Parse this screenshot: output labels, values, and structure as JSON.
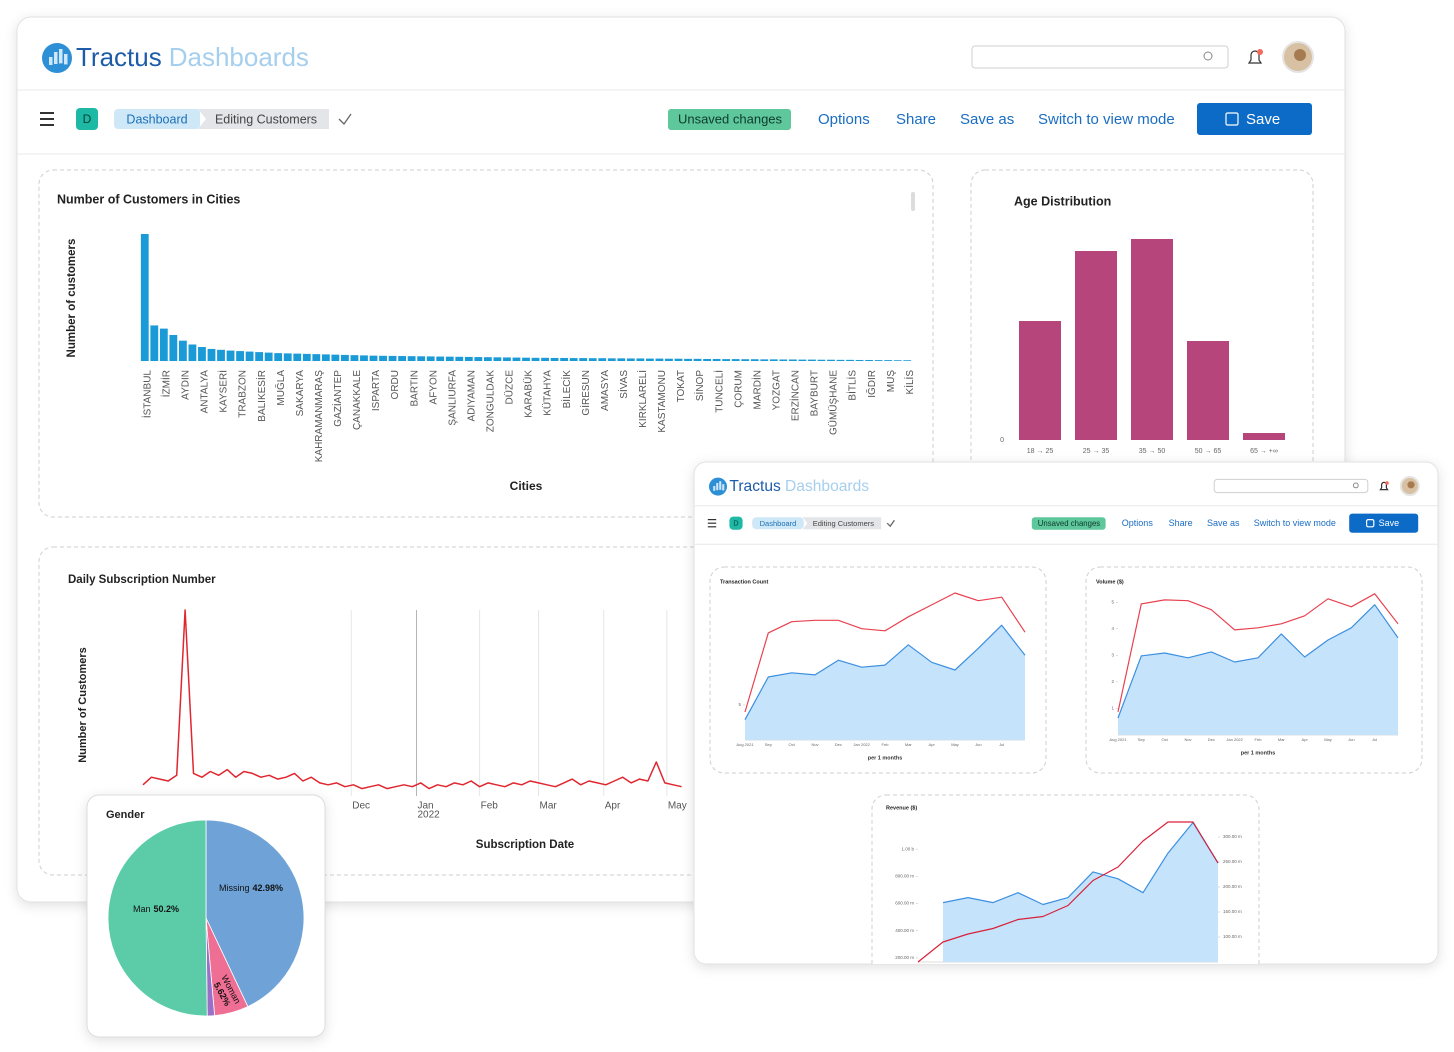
{
  "header": {
    "brand": "Tractus",
    "product": "Dashboards"
  },
  "toolbar": {
    "badge": "D",
    "breadcrumb": [
      "Dashboard",
      "Editing Customers"
    ],
    "status": "Unsaved changes",
    "actions": [
      "Options",
      "Share",
      "Save as",
      "Switch to view mode"
    ],
    "save": "Save"
  },
  "chart_data": [
    {
      "type": "bar",
      "title": "Number of Customers in Cities",
      "x_label": "Cities",
      "y_label": "Number of customers",
      "color": "#1a9ad6",
      "ylim": [
        0,
        1000
      ],
      "categories": [
        "İSTANBUL",
        null,
        "İZMİR",
        null,
        "AYDIN",
        null,
        "ANTALYA",
        null,
        "KAYSERİ",
        null,
        "TRABZON",
        null,
        "BALIKESİR",
        null,
        "MUĞLA",
        null,
        "SAKARYA",
        null,
        "KAHRAMANMARAŞ",
        null,
        "GAZİANTEP",
        null,
        "ÇANAKKALE",
        null,
        "ISPARTA",
        null,
        "ORDU",
        null,
        "BARTIN",
        null,
        "AFYON",
        null,
        "ŞANLIURFA",
        null,
        "ADIYAMAN",
        null,
        "ZONGULDAK",
        null,
        "DÜZCE",
        null,
        "KARABÜK",
        null,
        "KÜTAHYA",
        null,
        "BİLECİK",
        null,
        "GİRESUN",
        null,
        "AMASYA",
        null,
        "SİVAS",
        null,
        "KIRKLARELİ",
        null,
        "KASTAMONU",
        null,
        "TOKAT",
        null,
        "SİNOP",
        null,
        "TUNCELİ",
        null,
        "ÇORUM",
        null,
        "MARDİN",
        null,
        "YOZGAT",
        null,
        "ERZİNCAN",
        null,
        "BAYBURT",
        null,
        "GÜMÜŞHANE",
        null,
        "BİTLİS",
        null,
        "IĞDIR",
        null,
        "MUŞ",
        null,
        "KİLİS"
      ],
      "values": [
        1000,
        280,
        255,
        205,
        160,
        130,
        110,
        95,
        88,
        82,
        78,
        74,
        70,
        66,
        62,
        60,
        58,
        56,
        54,
        52,
        50,
        48,
        46,
        44,
        42,
        41,
        40,
        39,
        38,
        37,
        36,
        35,
        34,
        33,
        32,
        31,
        30,
        29,
        28,
        27,
        26,
        25,
        25,
        24,
        24,
        23,
        23,
        22,
        22,
        21,
        21,
        20,
        20,
        19,
        19,
        18,
        18,
        17,
        17,
        16,
        16,
        15,
        15,
        14,
        14,
        13,
        13,
        12,
        12,
        11,
        11,
        10,
        10,
        9,
        9,
        8,
        8,
        7,
        7,
        6,
        6
      ]
    },
    {
      "type": "bar",
      "title": "Age Distribution",
      "color": "#b5457a",
      "ylim": [
        0,
        210
      ],
      "yticks": [
        0
      ],
      "categories": [
        "18 → 25",
        "25 → 35",
        "35 → 50",
        "50 → 65",
        "65 → +∞"
      ],
      "values": [
        119,
        189,
        201,
        99,
        7
      ]
    },
    {
      "type": "line",
      "title": "Daily Subscription Number",
      "x_label": "Subscription Date",
      "y_label": "Number of Customers",
      "color": "#e0262f",
      "grid": true,
      "xlim": [
        0,
        260
      ],
      "ylim": [
        0,
        100
      ],
      "xticks": [
        {
          "value": 99,
          "label": "Dec"
        },
        {
          "value": 130,
          "label": "Jan",
          "sublabel": "2022"
        },
        {
          "value": 160,
          "label": "Feb"
        },
        {
          "value": 188,
          "label": "Mar"
        },
        {
          "value": 219,
          "label": "Apr"
        },
        {
          "value": 249,
          "label": "May"
        }
      ],
      "x": [
        0,
        4,
        8,
        12,
        16,
        20,
        24,
        28,
        32,
        36,
        40,
        44,
        48,
        52,
        56,
        60,
        64,
        68,
        72,
        76,
        80,
        84,
        88,
        92,
        96,
        100,
        104,
        108,
        112,
        116,
        120,
        124,
        128,
        132,
        136,
        140,
        144,
        148,
        152,
        156,
        160,
        164,
        168,
        172,
        176,
        180,
        184,
        188,
        192,
        196,
        200,
        204,
        208,
        212,
        216,
        220,
        224,
        228,
        232,
        236,
        240,
        244,
        248,
        252,
        256
      ],
      "values": [
        8,
        12,
        11,
        10,
        13,
        100,
        14,
        12,
        15,
        13,
        16,
        12,
        15,
        14,
        12,
        13,
        11,
        12,
        14,
        10,
        12,
        9,
        8,
        9,
        7,
        8,
        6,
        7,
        8,
        6,
        7,
        8,
        7,
        9,
        6,
        8,
        7,
        9,
        8,
        10,
        7,
        9,
        8,
        7,
        9,
        8,
        10,
        9,
        8,
        7,
        9,
        11,
        8,
        10,
        9,
        8,
        10,
        12,
        9,
        11,
        10,
        20,
        9,
        8,
        7
      ]
    },
    {
      "type": "pie",
      "title": "Gender",
      "categories": [
        "Missing",
        "Woman",
        null,
        "Man"
      ],
      "values": [
        42.98,
        5.62,
        1.2,
        50.2
      ],
      "value_labels": [
        "42.98%",
        "5.62%",
        null,
        "50.2%"
      ],
      "colors": [
        "#6fa3d8",
        "#ee6f93",
        "#9a6fc8",
        "#5ccca8"
      ]
    },
    {
      "type": "line",
      "title": "Transaction Count",
      "x_label": "per 1 months",
      "ylim": [
        0,
        22
      ],
      "yticks": [
        5
      ],
      "categories": [
        "Aug 2021",
        "Sep",
        "Oct",
        "Nov",
        "Dec",
        "Jan 2022",
        "Feb",
        "Mar",
        "Apr",
        "May",
        "Jun",
        "Jul",
        null
      ],
      "series": [
        {
          "color": "#3d8fe0",
          "area": true,
          "area_color": "#c5e3fb",
          "values": [
            2.9,
            9,
            9.6,
            9.3,
            11.4,
            10.4,
            10.7,
            13.6,
            11.1,
            10,
            13.1,
            16.4,
            12.1
          ]
        },
        {
          "color": "#e8414f",
          "values": [
            4,
            15.3,
            16.9,
            17.1,
            17.1,
            15.9,
            15.6,
            17.6,
            19.3,
            21,
            19.9,
            20.4,
            15.4
          ]
        }
      ]
    },
    {
      "type": "line",
      "title": "Volume ($)",
      "x_label": "per 1 months",
      "ylim": [
        0,
        5.5
      ],
      "yticks": [
        1,
        2,
        3,
        4,
        5
      ],
      "categories": [
        "Aug 2021",
        "Sep",
        "Oct",
        "Nov",
        "Dec",
        "Jan 2022",
        "Feb",
        "Mar",
        "Apr",
        "May",
        "Jun",
        "Jul",
        null
      ],
      "series": [
        {
          "color": "#3d8fe0",
          "area": true,
          "area_color": "#c5e3fb",
          "values": [
            0.64,
            2.98,
            3.09,
            2.91,
            3.13,
            2.75,
            2.91,
            3.81,
            2.94,
            3.58,
            4.04,
            4.91,
            3.66
          ]
        },
        {
          "color": "#e8414f",
          "values": [
            0.87,
            4.94,
            5.09,
            5.06,
            4.72,
            3.96,
            4.04,
            4.19,
            4.49,
            5.13,
            4.83,
            5.32,
            4.19
          ]
        }
      ]
    },
    {
      "type": "line",
      "title": "Revenue ($)",
      "ylim": [
        170000000,
        1200000000
      ],
      "yticks": [
        {
          "value": 200000000,
          "label": "200.00 m"
        },
        {
          "value": 400000000,
          "label": "400.00 m"
        },
        {
          "value": 600000000,
          "label": "600.00 m"
        },
        {
          "value": 800000000,
          "label": "800.00 m"
        },
        {
          "value": 1000000000,
          "label": "1.00 b"
        }
      ],
      "y2lim": [
        50000000,
        330000000
      ],
      "y2ticks": [
        {
          "value": 100000000,
          "label": "100.00 m"
        },
        {
          "value": 150000000,
          "label": "150.00 m"
        },
        {
          "value": 200000000,
          "label": "200.00 m"
        },
        {
          "value": 250000000,
          "label": "250.00 m"
        },
        {
          "value": 300000000,
          "label": "300.00 m"
        }
      ],
      "categories": [
        null,
        null,
        null,
        null,
        null,
        null,
        null,
        null,
        null,
        null,
        null,
        null,
        null
      ],
      "series": [
        {
          "color": "#3d8fe0",
          "area": true,
          "area_color": "#c5e3fb",
          "values": [
            null,
            607000000,
            644000000,
            607000000,
            680000000,
            593000000,
            644000000,
            833000000,
            782000000,
            680000000,
            971000000,
            1196000000,
            898000000
          ]
        },
        {
          "color": "#d9203a",
          "axis": "y2",
          "values": [
            50000000,
            90000000,
            106000000,
            117000000,
            135000000,
            141000000,
            163000000,
            213000000,
            240000000,
            292000000,
            330000000,
            330000000,
            248000000
          ]
        }
      ]
    }
  ]
}
